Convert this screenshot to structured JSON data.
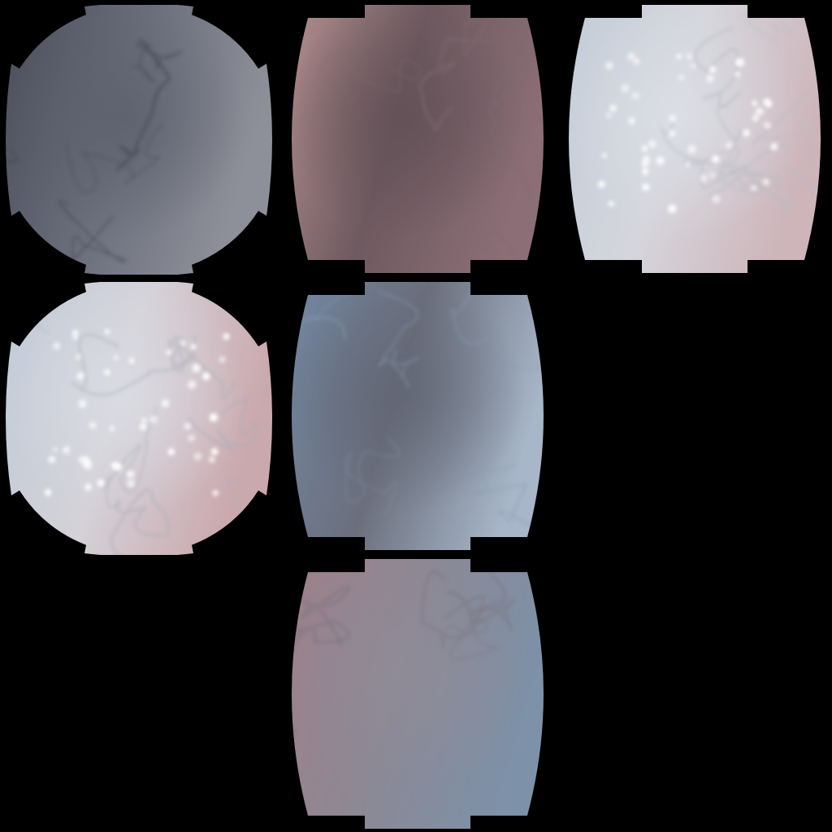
{
  "atlas": {
    "background_color": "#000000",
    "faces": [
      {
        "id": "face-tl",
        "shape": "circle-notched",
        "gradient": [
          "#4a4d58",
          "#6b6f7c",
          "#8e9099"
        ],
        "highlight_color": "#5a5e6a",
        "vein_color": "#3f4350",
        "has_sparkles": false
      },
      {
        "id": "face-tm",
        "shape": "barrel",
        "gradient": [
          "#b59090",
          "#6e5a60",
          "#8c6e76"
        ],
        "highlight_color": "#5e4e54",
        "vein_color": "#7c6a70",
        "has_sparkles": false
      },
      {
        "id": "face-tr",
        "shape": "barrel",
        "gradient": [
          "#c2ccd8",
          "#d5d6dc",
          "#cdb5ba"
        ],
        "highlight_color": "#dde1e8",
        "vein_color": "#b9bcc4",
        "has_sparkles": true
      },
      {
        "id": "face-ml",
        "shape": "circle-notched",
        "gradient": [
          "#c0cbd8",
          "#d4d2d8",
          "#caa9ae"
        ],
        "highlight_color": "#dcdfe6",
        "vein_color": "#a9adb8",
        "has_sparkles": true
      },
      {
        "id": "face-mm",
        "shape": "barrel",
        "gradient": [
          "#7388a4",
          "#6b6f7c",
          "#a7b6c8"
        ],
        "highlight_color": "#5f6472",
        "vein_color": "#8698ad",
        "has_sparkles": false
      },
      {
        "id": "face-bm",
        "shape": "barrel",
        "gradient": [
          "#a07f88",
          "#8c8894",
          "#7d91a8"
        ],
        "highlight_color": "#908c98",
        "vein_color": "#7a7480",
        "has_sparkles": false
      }
    ]
  }
}
